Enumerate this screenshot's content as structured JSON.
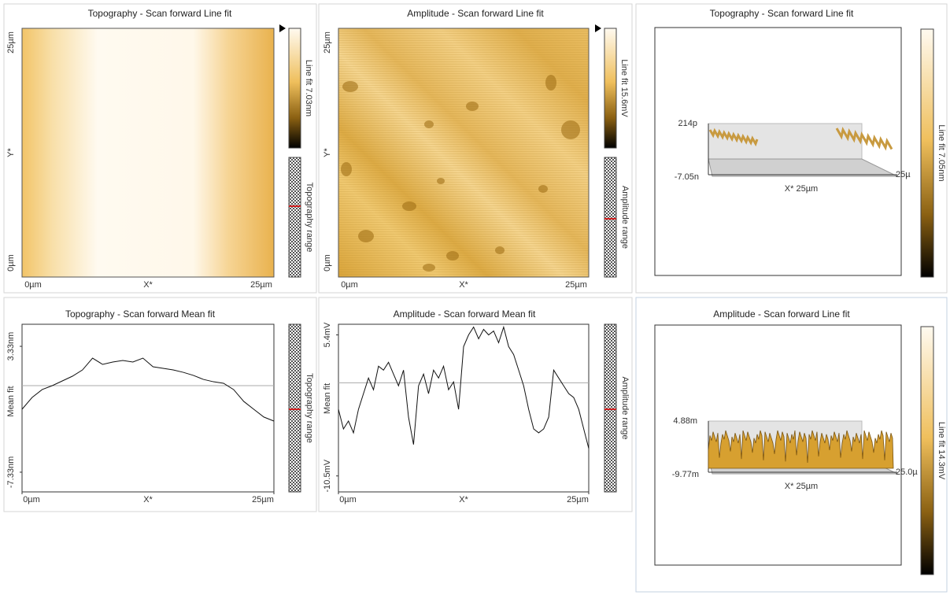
{
  "panels": [
    {
      "type": "image",
      "title": "Topography - Scan forward   Line fit",
      "x_labels": [
        "0µm",
        "X*",
        "25µm"
      ],
      "y_labels": [
        "25µm",
        "Y*",
        "0µm"
      ],
      "colorbar_label": "Line fit 7.03nm",
      "range_label": "Topography range"
    },
    {
      "type": "image",
      "title": "Amplitude - Scan forward   Line fit",
      "x_labels": [
        "0µm",
        "X*",
        "25µm"
      ],
      "y_labels": [
        "25µm",
        "Y*",
        "0µm"
      ],
      "colorbar_label": "Line fit 15.6mV",
      "range_label": "Amplitude range"
    },
    {
      "type": "surface3d",
      "title": "Topography - Scan forward   Line fit",
      "z_top": "214p",
      "z_bottom": "-7.05n",
      "x_label": "X* 25µm",
      "y_label": "25µ",
      "colorbar_label": "Line fit 7.05nm"
    },
    {
      "type": "line",
      "title": "Topography - Scan forward   Mean fit",
      "ylabel": "Mean fit",
      "xlabel": "X*",
      "range_label": "Topography range",
      "xlim": [
        0,
        25
      ],
      "xticks": [
        {
          "value": 0,
          "label": "0µm"
        },
        {
          "value": 25,
          "label": "25µm"
        }
      ],
      "ylim": [
        -9.0,
        5.2
      ],
      "yticks": [
        {
          "value": 3.33,
          "label": "3.33nm"
        },
        {
          "value": -7.33,
          "label": "-7.33nm"
        }
      ],
      "x": [
        0,
        1,
        2,
        3,
        4,
        5,
        6,
        7,
        8,
        9,
        10,
        11,
        12,
        13,
        14,
        15,
        16,
        17,
        18,
        19,
        20,
        21,
        22,
        23,
        24,
        25
      ],
      "values": [
        -2.0,
        -1.0,
        -0.33,
        0.0,
        0.4,
        0.8,
        1.33,
        2.33,
        1.8,
        2.0,
        2.13,
        2.0,
        2.33,
        1.6,
        1.47,
        1.33,
        1.13,
        0.87,
        0.53,
        0.33,
        0.2,
        -0.33,
        -1.33,
        -2.0,
        -2.66,
        -3.0
      ]
    },
    {
      "type": "line",
      "title": "Amplitude - Scan forward   Mean fit",
      "ylabel": "Mean fit",
      "xlabel": "X*",
      "range_label": "Amplitude range",
      "xlim": [
        0,
        25
      ],
      "xticks": [
        {
          "value": 0,
          "label": "0µm"
        },
        {
          "value": 25,
          "label": "25µm"
        }
      ],
      "ylim": [
        -12.3,
        6.6
      ],
      "yticks": [
        {
          "value": 5.4,
          "label": "5.4mV"
        },
        {
          "value": -10.5,
          "label": "-10.5mV"
        }
      ],
      "x": [
        0,
        0.5,
        1,
        1.5,
        2,
        2.5,
        3,
        3.5,
        4,
        4.5,
        5,
        5.5,
        6,
        6.5,
        7,
        7.5,
        8,
        8.5,
        9,
        9.5,
        10,
        10.5,
        11,
        11.5,
        12,
        12.5,
        13,
        13.5,
        14,
        14.5,
        15,
        15.5,
        16,
        16.5,
        17,
        17.5,
        18,
        18.5,
        19,
        19.5,
        20,
        20.5,
        21,
        21.5,
        22,
        22.5,
        23,
        23.5,
        24,
        24.5,
        25
      ],
      "values": [
        -2.99,
        -5.2,
        -4.31,
        -5.64,
        -2.99,
        -1.22,
        0.54,
        -0.78,
        1.87,
        1.43,
        2.31,
        0.98,
        -0.34,
        1.43,
        -3.87,
        -6.96,
        -0.34,
        0.98,
        -1.22,
        1.43,
        0.54,
        1.87,
        -0.78,
        0.1,
        -2.99,
        4.08,
        5.4,
        6.28,
        4.96,
        6.02,
        5.4,
        5.84,
        4.52,
        6.28,
        4.08,
        3.19,
        1.43,
        -0.34,
        -2.99,
        -5.2,
        -5.64,
        -5.2,
        -3.87,
        1.43,
        0.54,
        -0.34,
        -1.22,
        -1.66,
        -2.99,
        -5.2,
        -7.4
      ]
    },
    {
      "type": "surface3d",
      "title": "Amplitude - Scan forward   Line fit",
      "z_top": "4.88m",
      "z_bottom": "-9.77m",
      "x_label": "X* 25µm",
      "y_label": "25.0µ",
      "colorbar_label": "Line fit 14.3mV"
    }
  ]
}
